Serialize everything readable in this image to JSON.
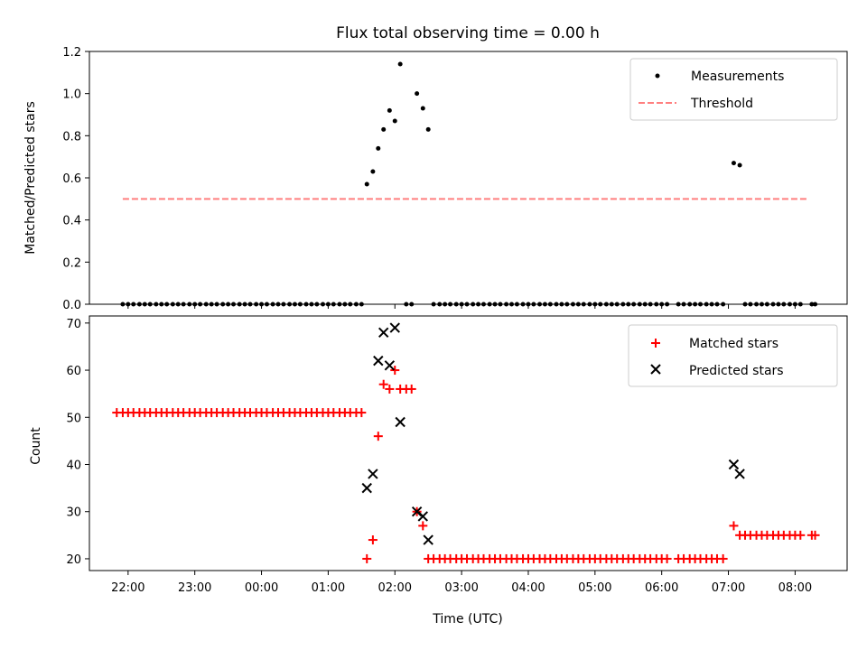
{
  "chart_data": [
    {
      "type": "scatter",
      "title": "Flux total observing time = 0.00 h",
      "xlabel": "",
      "ylabel": "Matched/Predicted stars",
      "ylim": [
        0,
        1.2
      ],
      "yticks": [
        "0.0",
        "0.2",
        "0.4",
        "0.6",
        "0.8",
        "1.0",
        "1.2"
      ],
      "xlim_hours": [
        -2.58,
        8.78
      ],
      "legend_position": "top-right",
      "series": [
        {
          "name": "Measurements",
          "color": "#000000",
          "marker": "dot",
          "points": [
            [
              -2.08,
              0
            ],
            [
              -2.0,
              0
            ],
            [
              -1.92,
              0
            ],
            [
              -1.83,
              0
            ],
            [
              -1.75,
              0
            ],
            [
              -1.67,
              0
            ],
            [
              -1.58,
              0
            ],
            [
              -1.5,
              0
            ],
            [
              -1.42,
              0
            ],
            [
              -1.33,
              0
            ],
            [
              -1.25,
              0
            ],
            [
              -1.17,
              0
            ],
            [
              -1.08,
              0
            ],
            [
              -1.0,
              0
            ],
            [
              -0.92,
              0
            ],
            [
              -0.83,
              0
            ],
            [
              -0.75,
              0
            ],
            [
              -0.67,
              0
            ],
            [
              -0.58,
              0
            ],
            [
              -0.5,
              0
            ],
            [
              -0.42,
              0
            ],
            [
              -0.33,
              0
            ],
            [
              -0.25,
              0
            ],
            [
              -0.17,
              0
            ],
            [
              -0.08,
              0
            ],
            [
              0.0,
              0
            ],
            [
              0.08,
              0
            ],
            [
              0.17,
              0
            ],
            [
              0.25,
              0
            ],
            [
              0.33,
              0
            ],
            [
              0.42,
              0
            ],
            [
              0.5,
              0
            ],
            [
              0.58,
              0
            ],
            [
              0.67,
              0
            ],
            [
              0.75,
              0
            ],
            [
              0.83,
              0
            ],
            [
              0.92,
              0
            ],
            [
              1.0,
              0
            ],
            [
              1.08,
              0
            ],
            [
              1.17,
              0
            ],
            [
              1.25,
              0
            ],
            [
              1.33,
              0
            ],
            [
              1.42,
              0
            ],
            [
              1.5,
              0
            ],
            [
              1.58,
              0.57
            ],
            [
              1.67,
              0.63
            ],
            [
              1.75,
              0.74
            ],
            [
              1.83,
              0.83
            ],
            [
              1.92,
              0.92
            ],
            [
              2.0,
              0.87
            ],
            [
              2.08,
              1.14
            ],
            [
              2.17,
              0
            ],
            [
              2.25,
              0
            ],
            [
              2.33,
              1.0
            ],
            [
              2.42,
              0.93
            ],
            [
              2.5,
              0.83
            ],
            [
              2.58,
              0
            ],
            [
              2.67,
              0
            ],
            [
              2.75,
              0
            ],
            [
              2.83,
              0
            ],
            [
              2.92,
              0
            ],
            [
              3.0,
              0
            ],
            [
              3.08,
              0
            ],
            [
              3.17,
              0
            ],
            [
              3.25,
              0
            ],
            [
              3.33,
              0
            ],
            [
              3.42,
              0
            ],
            [
              3.5,
              0
            ],
            [
              3.58,
              0
            ],
            [
              3.67,
              0
            ],
            [
              3.75,
              0
            ],
            [
              3.83,
              0
            ],
            [
              3.92,
              0
            ],
            [
              4.0,
              0
            ],
            [
              4.08,
              0
            ],
            [
              4.17,
              0
            ],
            [
              4.25,
              0
            ],
            [
              4.33,
              0
            ],
            [
              4.42,
              0
            ],
            [
              4.5,
              0
            ],
            [
              4.58,
              0
            ],
            [
              4.67,
              0
            ],
            [
              4.75,
              0
            ],
            [
              4.83,
              0
            ],
            [
              4.92,
              0
            ],
            [
              5.0,
              0
            ],
            [
              5.08,
              0
            ],
            [
              5.17,
              0
            ],
            [
              5.25,
              0
            ],
            [
              5.33,
              0
            ],
            [
              5.42,
              0
            ],
            [
              5.5,
              0
            ],
            [
              5.58,
              0
            ],
            [
              5.67,
              0
            ],
            [
              5.75,
              0
            ],
            [
              5.83,
              0
            ],
            [
              5.92,
              0
            ],
            [
              6.0,
              0
            ],
            [
              6.08,
              0
            ],
            [
              6.25,
              0
            ],
            [
              6.33,
              0
            ],
            [
              6.42,
              0
            ],
            [
              6.5,
              0
            ],
            [
              6.58,
              0
            ],
            [
              6.67,
              0
            ],
            [
              6.75,
              0
            ],
            [
              6.83,
              0
            ],
            [
              6.92,
              0
            ],
            [
              7.08,
              0.67
            ],
            [
              7.17,
              0.66
            ],
            [
              7.25,
              0
            ],
            [
              7.33,
              0
            ],
            [
              7.42,
              0
            ],
            [
              7.5,
              0
            ],
            [
              7.58,
              0
            ],
            [
              7.67,
              0
            ],
            [
              7.75,
              0
            ],
            [
              7.83,
              0
            ],
            [
              7.92,
              0
            ],
            [
              8.0,
              0
            ],
            [
              8.08,
              0
            ],
            [
              8.25,
              0
            ],
            [
              8.3,
              0
            ]
          ]
        },
        {
          "name": "Threshold",
          "color": "#ff7f7f",
          "style": "dashed",
          "x": [
            -2.08,
            8.17
          ],
          "y": [
            0.5,
            0.5
          ]
        }
      ]
    },
    {
      "type": "scatter",
      "title": "",
      "xlabel": "Time (UTC)",
      "ylabel": "Count",
      "ylim": [
        17.5,
        71.5
      ],
      "yticks": [
        "20",
        "30",
        "40",
        "50",
        "60",
        "70"
      ],
      "xlim_hours": [
        -2.58,
        8.78
      ],
      "xticks": [
        "22:00",
        "23:00",
        "00:00",
        "01:00",
        "02:00",
        "03:00",
        "04:00",
        "05:00",
        "06:00",
        "07:00",
        "08:00"
      ],
      "legend_position": "top-right",
      "series": [
        {
          "name": "Matched stars",
          "color": "#ff0000",
          "marker": "plus",
          "points": [
            [
              -2.17,
              51
            ],
            [
              -2.08,
              51
            ],
            [
              -2.0,
              51
            ],
            [
              -1.92,
              51
            ],
            [
              -1.83,
              51
            ],
            [
              -1.75,
              51
            ],
            [
              -1.67,
              51
            ],
            [
              -1.58,
              51
            ],
            [
              -1.5,
              51
            ],
            [
              -1.42,
              51
            ],
            [
              -1.33,
              51
            ],
            [
              -1.25,
              51
            ],
            [
              -1.17,
              51
            ],
            [
              -1.08,
              51
            ],
            [
              -1.0,
              51
            ],
            [
              -0.92,
              51
            ],
            [
              -0.83,
              51
            ],
            [
              -0.75,
              51
            ],
            [
              -0.67,
              51
            ],
            [
              -0.58,
              51
            ],
            [
              -0.5,
              51
            ],
            [
              -0.42,
              51
            ],
            [
              -0.33,
              51
            ],
            [
              -0.25,
              51
            ],
            [
              -0.17,
              51
            ],
            [
              -0.08,
              51
            ],
            [
              0.0,
              51
            ],
            [
              0.08,
              51
            ],
            [
              0.17,
              51
            ],
            [
              0.25,
              51
            ],
            [
              0.33,
              51
            ],
            [
              0.42,
              51
            ],
            [
              0.5,
              51
            ],
            [
              0.58,
              51
            ],
            [
              0.67,
              51
            ],
            [
              0.75,
              51
            ],
            [
              0.83,
              51
            ],
            [
              0.92,
              51
            ],
            [
              1.0,
              51
            ],
            [
              1.08,
              51
            ],
            [
              1.17,
              51
            ],
            [
              1.25,
              51
            ],
            [
              1.33,
              51
            ],
            [
              1.42,
              51
            ],
            [
              1.5,
              51
            ],
            [
              1.58,
              20
            ],
            [
              1.67,
              24
            ],
            [
              1.75,
              46
            ],
            [
              1.83,
              57
            ],
            [
              1.92,
              56
            ],
            [
              2.0,
              60
            ],
            [
              2.08,
              56
            ],
            [
              2.17,
              56
            ],
            [
              2.25,
              56
            ],
            [
              2.33,
              30
            ],
            [
              2.42,
              27
            ],
            [
              2.5,
              20
            ],
            [
              2.58,
              20
            ],
            [
              2.67,
              20
            ],
            [
              2.75,
              20
            ],
            [
              2.83,
              20
            ],
            [
              2.92,
              20
            ],
            [
              3.0,
              20
            ],
            [
              3.08,
              20
            ],
            [
              3.17,
              20
            ],
            [
              3.25,
              20
            ],
            [
              3.33,
              20
            ],
            [
              3.42,
              20
            ],
            [
              3.5,
              20
            ],
            [
              3.58,
              20
            ],
            [
              3.67,
              20
            ],
            [
              3.75,
              20
            ],
            [
              3.83,
              20
            ],
            [
              3.92,
              20
            ],
            [
              4.0,
              20
            ],
            [
              4.08,
              20
            ],
            [
              4.17,
              20
            ],
            [
              4.25,
              20
            ],
            [
              4.33,
              20
            ],
            [
              4.42,
              20
            ],
            [
              4.5,
              20
            ],
            [
              4.58,
              20
            ],
            [
              4.67,
              20
            ],
            [
              4.75,
              20
            ],
            [
              4.83,
              20
            ],
            [
              4.92,
              20
            ],
            [
              5.0,
              20
            ],
            [
              5.08,
              20
            ],
            [
              5.17,
              20
            ],
            [
              5.25,
              20
            ],
            [
              5.33,
              20
            ],
            [
              5.42,
              20
            ],
            [
              5.5,
              20
            ],
            [
              5.58,
              20
            ],
            [
              5.67,
              20
            ],
            [
              5.75,
              20
            ],
            [
              5.83,
              20
            ],
            [
              5.92,
              20
            ],
            [
              6.0,
              20
            ],
            [
              6.08,
              20
            ],
            [
              6.25,
              20
            ],
            [
              6.33,
              20
            ],
            [
              6.42,
              20
            ],
            [
              6.5,
              20
            ],
            [
              6.58,
              20
            ],
            [
              6.67,
              20
            ],
            [
              6.75,
              20
            ],
            [
              6.83,
              20
            ],
            [
              6.92,
              20
            ],
            [
              7.08,
              27
            ],
            [
              7.17,
              25
            ],
            [
              7.25,
              25
            ],
            [
              7.33,
              25
            ],
            [
              7.42,
              25
            ],
            [
              7.5,
              25
            ],
            [
              7.58,
              25
            ],
            [
              7.67,
              25
            ],
            [
              7.75,
              25
            ],
            [
              7.83,
              25
            ],
            [
              7.92,
              25
            ],
            [
              8.0,
              25
            ],
            [
              8.08,
              25
            ],
            [
              8.25,
              25
            ],
            [
              8.3,
              25
            ]
          ]
        },
        {
          "name": "Predicted stars",
          "color": "#000000",
          "marker": "x",
          "points": [
            [
              1.58,
              35
            ],
            [
              1.67,
              38
            ],
            [
              1.75,
              62
            ],
            [
              1.83,
              68
            ],
            [
              1.92,
              61
            ],
            [
              2.0,
              69
            ],
            [
              2.08,
              49
            ],
            [
              2.33,
              30
            ],
            [
              2.42,
              29
            ],
            [
              2.5,
              24
            ],
            [
              7.08,
              40
            ],
            [
              7.17,
              38
            ]
          ]
        }
      ]
    }
  ]
}
